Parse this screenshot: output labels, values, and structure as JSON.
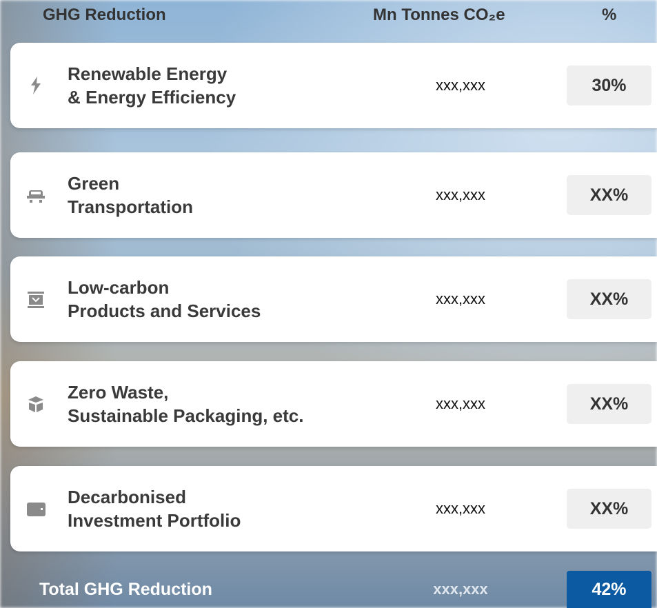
{
  "header": {
    "title": "GHG Reduction",
    "unit": "Mn Tonnes CO₂e",
    "share": "%"
  },
  "rows": [
    {
      "label": [
        "Renewable Energy",
        "& Energy Efficiency"
      ],
      "amount": "xxx,xxx",
      "share": "30%"
    },
    {
      "label": [
        "Green",
        "Transportation"
      ],
      "amount": "xxx,xxx",
      "share": "XX%"
    },
    {
      "label": [
        "Low-carbon",
        "Products and Services"
      ],
      "amount": "xxx,xxx",
      "share": "XX%"
    },
    {
      "label": [
        "Zero Waste,",
        "Sustainable Packaging, etc."
      ],
      "amount": "xxx,xxx",
      "share": "XX%"
    },
    {
      "label": [
        "Decarbonised",
        "Investment Portfolio"
      ],
      "amount": "xxx,xxx",
      "share": "XX%"
    }
  ],
  "total": {
    "label": "Total GHG Reduction",
    "amount": "xxx,xxx",
    "share": "42%"
  }
}
